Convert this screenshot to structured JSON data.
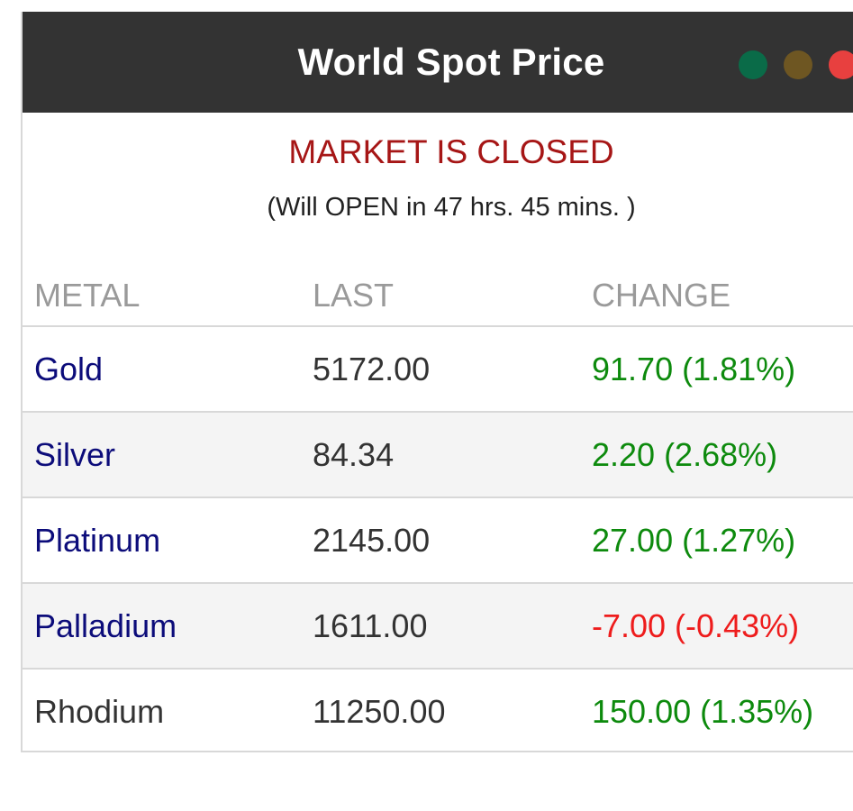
{
  "header": {
    "title": "World Spot Price",
    "window_dots": [
      {
        "name": "green-dot",
        "color": "#0a6b48"
      },
      {
        "name": "yellow-dot",
        "color": "#6e5622"
      },
      {
        "name": "red-dot",
        "color": "#e8403f"
      }
    ]
  },
  "market": {
    "status": "MARKET IS CLOSED",
    "countdown": "(Will OPEN in 47 hrs. 45 mins. )",
    "status_color": "#a61616"
  },
  "table": {
    "headers": [
      "METAL",
      "LAST",
      "CHANGE"
    ],
    "rows": [
      {
        "metal": "Gold",
        "last": "5172.00",
        "change": "91.70 (1.81%)",
        "direction": "up"
      },
      {
        "metal": "Silver",
        "last": "84.34",
        "change": "2.20 (2.68%)",
        "direction": "up"
      },
      {
        "metal": "Platinum",
        "last": "2145.00",
        "change": "27.00 (1.27%)",
        "direction": "up"
      },
      {
        "metal": "Palladium",
        "last": "1611.00",
        "change": "-7.00 (-0.43%)",
        "direction": "down"
      },
      {
        "metal": "Rhodium",
        "last": "11250.00",
        "change": "150.00 (1.35%)",
        "direction": "up"
      }
    ],
    "colors": {
      "up": "#0d8a0d",
      "down": "#ee1c1c",
      "metal_link": "#0c0c7a"
    }
  }
}
